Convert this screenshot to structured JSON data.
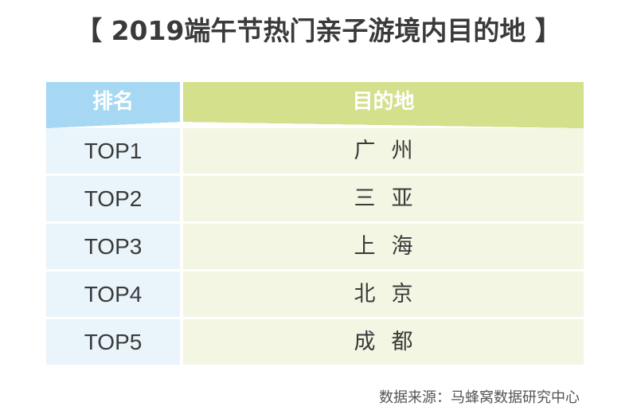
{
  "title": "【 2019端午节热门亲子游境内目的地 】",
  "source": "数据来源：马蜂窝数据研究中心",
  "colors": {
    "header_rank_bg": "#a6d8f3",
    "header_dest_bg": "#d4e08c",
    "rank_cell_bg": "#e9f4fb",
    "dest_cell_bg": "#f3f6e3"
  },
  "chart_data": {
    "type": "table",
    "title": "【 2019端午节热门亲子游境内目的地 】",
    "columns": [
      "排名",
      "目的地"
    ],
    "rows": [
      [
        "TOP1",
        "广州"
      ],
      [
        "TOP2",
        "三亚"
      ],
      [
        "TOP3",
        "上海"
      ],
      [
        "TOP4",
        "北京"
      ],
      [
        "TOP5",
        "成都"
      ]
    ],
    "source": "数据来源：马蜂窝数据研究中心"
  }
}
